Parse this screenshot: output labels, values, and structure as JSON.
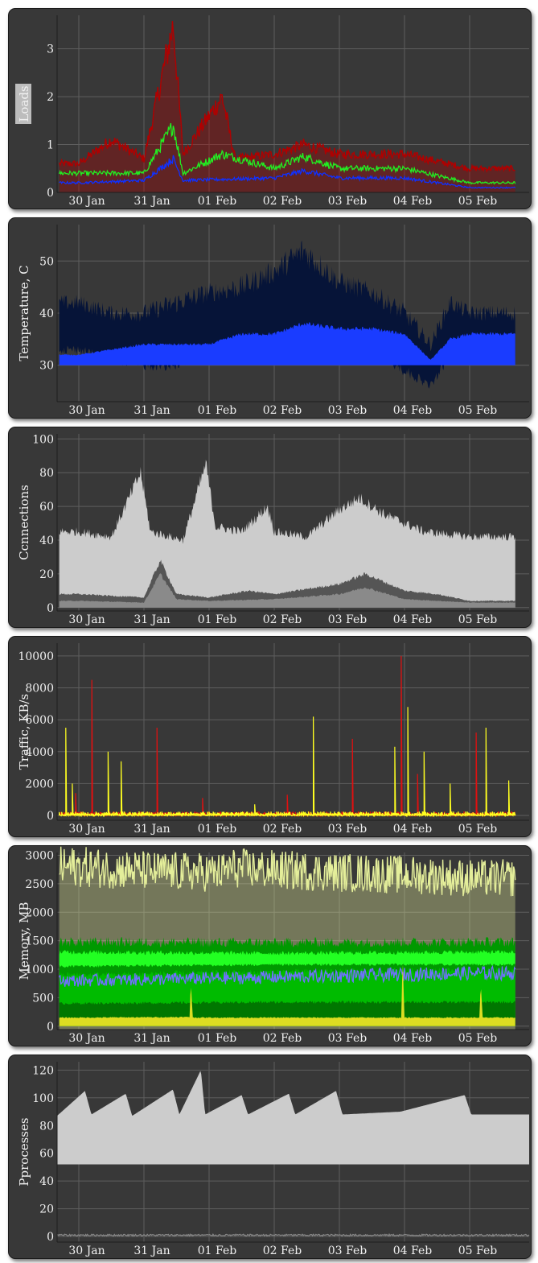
{
  "chart_data": [
    {
      "type": "line",
      "ylabel": "Loads",
      "ylabel_boxed": true,
      "ylim": [
        0,
        3.7
      ],
      "yticks": [
        0,
        1,
        2,
        3
      ],
      "xticks": [
        "30 Jan",
        "31 Jan",
        "01 Feb",
        "02 Feb",
        "03 Feb",
        "04 Feb",
        "05 Feb"
      ],
      "grid": true,
      "series": [
        {
          "color": "#b00000",
          "kind": "filled-line",
          "points": [
            [
              0,
              0.6
            ],
            [
              0.5,
              1.1
            ],
            [
              1,
              0.7
            ],
            [
              1.45,
              3.5
            ],
            [
              1.6,
              0.8
            ],
            [
              2.2,
              2.0
            ],
            [
              2.4,
              0.7
            ],
            [
              3,
              0.8
            ],
            [
              3.45,
              1.0
            ],
            [
              4,
              0.8
            ],
            [
              5,
              0.8
            ],
            [
              6,
              0.5
            ]
          ]
        },
        {
          "color": "#22ee22",
          "kind": "line",
          "points": [
            [
              0,
              0.4
            ],
            [
              1,
              0.4
            ],
            [
              1.45,
              1.4
            ],
            [
              1.6,
              0.4
            ],
            [
              2.2,
              0.8
            ],
            [
              3,
              0.5
            ],
            [
              3.45,
              0.75
            ],
            [
              4,
              0.5
            ],
            [
              5,
              0.5
            ],
            [
              6,
              0.2
            ]
          ]
        },
        {
          "color": "#1030ff",
          "kind": "line",
          "points": [
            [
              0,
              0.2
            ],
            [
              1,
              0.25
            ],
            [
              1.45,
              0.7
            ],
            [
              1.6,
              0.25
            ],
            [
              3,
              0.3
            ],
            [
              3.45,
              0.45
            ],
            [
              4,
              0.3
            ],
            [
              5,
              0.3
            ],
            [
              6,
              0.1
            ]
          ]
        }
      ]
    },
    {
      "type": "area",
      "ylabel": "Temperature, C",
      "ylim": [
        23,
        57
      ],
      "yticks": [
        30,
        40,
        50
      ],
      "xticks": [
        "30 Jan",
        "31 Jan",
        "01 Feb",
        "02 Feb",
        "03 Feb",
        "04 Feb",
        "05 Feb"
      ],
      "grid": true,
      "series": [
        {
          "color": "#061438",
          "kind": "band",
          "points": [
            [
              0,
              33,
              42
            ],
            [
              0.5,
              31,
              40
            ],
            [
              1,
              30,
              40
            ],
            [
              1.5,
              30,
              42
            ],
            [
              2,
              33,
              44
            ],
            [
              2.5,
              32,
              45
            ],
            [
              3,
              35,
              48
            ],
            [
              3.45,
              35,
              52
            ],
            [
              4,
              34,
              46
            ],
            [
              4.5,
              33,
              44
            ],
            [
              5,
              29,
              40
            ],
            [
              5.4,
              26,
              34
            ],
            [
              5.7,
              32,
              42
            ],
            [
              6,
              31,
              40
            ]
          ]
        },
        {
          "color": "#1a3cff",
          "kind": "area",
          "base": 30,
          "points": [
            [
              0,
              32
            ],
            [
              0.5,
              33
            ],
            [
              1,
              34
            ],
            [
              1.5,
              34
            ],
            [
              2,
              34
            ],
            [
              2.5,
              36
            ],
            [
              3,
              36
            ],
            [
              3.45,
              38
            ],
            [
              4,
              37
            ],
            [
              4.5,
              37
            ],
            [
              5,
              36
            ],
            [
              5.4,
              31
            ],
            [
              5.7,
              35
            ],
            [
              6,
              36
            ]
          ]
        }
      ]
    },
    {
      "type": "area",
      "ylabel": "Ccnnections",
      "ylim": [
        -2,
        103
      ],
      "yticks": [
        0,
        20,
        40,
        60,
        80,
        100
      ],
      "xticks": [
        "30 Jan",
        "31 Jan",
        "01 Feb",
        "02 Feb",
        "03 Feb",
        "04 Feb",
        "05 Feb"
      ],
      "grid": true,
      "series": [
        {
          "color": "#cccccc",
          "kind": "area",
          "base": 0,
          "points": [
            [
              0,
              45
            ],
            [
              0.5,
              42
            ],
            [
              0.95,
              80
            ],
            [
              1.1,
              45
            ],
            [
              1.6,
              40
            ],
            [
              1.95,
              85
            ],
            [
              2.1,
              48
            ],
            [
              2.5,
              45
            ],
            [
              2.9,
              60
            ],
            [
              3.0,
              45
            ],
            [
              3.5,
              42
            ],
            [
              4,
              58
            ],
            [
              4.3,
              65
            ],
            [
              4.7,
              55
            ],
            [
              5.0,
              50
            ],
            [
              5.3,
              45
            ],
            [
              6,
              42
            ]
          ]
        },
        {
          "color": "#555555",
          "kind": "area",
          "base": 0,
          "points": [
            [
              0,
              8
            ],
            [
              1,
              6
            ],
            [
              1.25,
              28
            ],
            [
              1.5,
              8
            ],
            [
              2,
              6
            ],
            [
              2.6,
              10
            ],
            [
              3,
              8
            ],
            [
              4,
              14
            ],
            [
              4.4,
              20
            ],
            [
              5,
              10
            ],
            [
              5.5,
              8
            ],
            [
              6,
              4
            ]
          ]
        },
        {
          "color": "#8a8a8a",
          "kind": "area",
          "base": 0,
          "points": [
            [
              0,
              4
            ],
            [
              1,
              3
            ],
            [
              1.25,
              20
            ],
            [
              1.5,
              5
            ],
            [
              2,
              4
            ],
            [
              3,
              5
            ],
            [
              4,
              8
            ],
            [
              4.4,
              12
            ],
            [
              5,
              5
            ],
            [
              6,
              3
            ]
          ]
        }
      ]
    },
    {
      "type": "area",
      "ylabel": "Traffic, KB/s",
      "ylim": [
        -300,
        10800
      ],
      "yticks": [
        0,
        2000,
        4000,
        6000,
        8000,
        10000
      ],
      "xticks": [
        "30 Jan",
        "31 Jan",
        "01 Feb",
        "02 Feb",
        "03 Feb",
        "04 Feb",
        "05 Feb"
      ],
      "grid": true,
      "series": [
        {
          "color": "#e01010",
          "kind": "spikes",
          "points": [
            [
              -0.05,
              1400
            ],
            [
              0.2,
              8500
            ],
            [
              1.2,
              5500
            ],
            [
              1.9,
              1100
            ],
            [
              3.2,
              1300
            ],
            [
              4.2,
              4800
            ],
            [
              4.95,
              10000
            ],
            [
              5.2,
              2600
            ],
            [
              6.1,
              5200
            ]
          ]
        },
        {
          "color": "#ffff20",
          "kind": "spikes",
          "points": [
            [
              -0.2,
              5500
            ],
            [
              -0.1,
              2000
            ],
            [
              0.45,
              4000
            ],
            [
              0.65,
              3400
            ],
            [
              2.7,
              700
            ],
            [
              3.6,
              6200
            ],
            [
              4.85,
              4300
            ],
            [
              5.05,
              6800
            ],
            [
              5.3,
              4000
            ],
            [
              5.7,
              2000
            ],
            [
              6.25,
              5500
            ],
            [
              6.6,
              2200
            ]
          ]
        }
      ]
    },
    {
      "type": "area",
      "ylabel": "Memory, MB",
      "ylim": [
        -60,
        3050
      ],
      "yticks": [
        0,
        500,
        1000,
        1500,
        2000,
        2500,
        3000
      ],
      "xticks": [
        "30 Jan",
        "31 Jan",
        "01 Feb",
        "02 Feb",
        "03 Feb",
        "04 Feb",
        "05 Feb"
      ],
      "grid": true,
      "series": [
        {
          "color": "#e4ee9a",
          "kind": "filled-line",
          "points": [
            [
              0,
              2800
            ],
            [
              1.2,
              2720
            ],
            [
              2.2,
              2700
            ],
            [
              2.3,
              2780
            ],
            [
              3.5,
              2720
            ],
            [
              5,
              2660
            ],
            [
              5.5,
              2640
            ],
            [
              6,
              2600
            ]
          ]
        },
        {
          "color": "#009900",
          "kind": "area",
          "base": 0,
          "points": [
            [
              0,
              1480
            ],
            [
              3,
              1470
            ],
            [
              6,
              1480
            ]
          ]
        },
        {
          "color": "#22ff22",
          "kind": "band",
          "points": [
            [
              0,
              1050,
              1300
            ],
            [
              3,
              1080,
              1280
            ],
            [
              6,
              1080,
              1300
            ]
          ]
        },
        {
          "color": "#00bb00",
          "kind": "area",
          "base": 0,
          "points": [
            [
              0,
              900
            ],
            [
              3,
              950
            ],
            [
              6,
              980
            ]
          ]
        },
        {
          "color": "#7070ff",
          "kind": "line",
          "points": [
            [
              0,
              800
            ],
            [
              3,
              860
            ],
            [
              6,
              930
            ]
          ]
        },
        {
          "color": "#007700",
          "kind": "area",
          "base": 0,
          "points": [
            [
              0,
              400
            ],
            [
              3,
              420
            ],
            [
              6,
              420
            ]
          ]
        },
        {
          "color": "#dddd22",
          "kind": "area",
          "base": 0,
          "points": [
            [
              0,
              150
            ],
            [
              1.7,
              160
            ],
            [
              1.72,
              800
            ],
            [
              1.75,
              150
            ],
            [
              4.95,
              150
            ],
            [
              4.97,
              1200
            ],
            [
              5,
              150
            ],
            [
              6.15,
              150
            ],
            [
              6.17,
              750
            ],
            [
              6.2,
              150
            ],
            [
              6,
              150
            ]
          ]
        }
      ]
    },
    {
      "type": "area",
      "ylabel": "Pprocesses",
      "ylim": [
        -4,
        126
      ],
      "yticks": [
        0,
        20,
        40,
        60,
        80,
        100,
        120
      ],
      "xticks": [
        "30 Jan",
        "31 Jan",
        "01 Feb",
        "02 Feb",
        "03 Feb",
        "04 Feb",
        "05 Feb"
      ],
      "grid": true,
      "series": [
        {
          "color": "#cccccc",
          "kind": "band",
          "points": [
            [
              0,
              52,
              87
            ],
            [
              0.65,
              52,
              105
            ],
            [
              0.8,
              52,
              88
            ],
            [
              1.6,
              52,
              103
            ],
            [
              1.75,
              52,
              87
            ],
            [
              2.7,
              52,
              106
            ],
            [
              2.85,
              52,
              88
            ],
            [
              3.35,
              52,
              120
            ],
            [
              3.45,
              52,
              88
            ],
            [
              4.3,
              52,
              102
            ],
            [
              4.45,
              52,
              88
            ],
            [
              5.4,
              52,
              103
            ],
            [
              5.55,
              52,
              88
            ],
            [
              6.5,
              52,
              105
            ],
            [
              6.65,
              52,
              88
            ],
            [
              8,
              52,
              90
            ],
            [
              9.5,
              52,
              102
            ],
            [
              9.65,
              52,
              88
            ],
            [
              11,
              52,
              88
            ]
          ]
        },
        {
          "color": "#888888",
          "kind": "line",
          "points": [
            [
              0,
              1
            ],
            [
              11,
              1
            ]
          ]
        }
      ]
    }
  ]
}
